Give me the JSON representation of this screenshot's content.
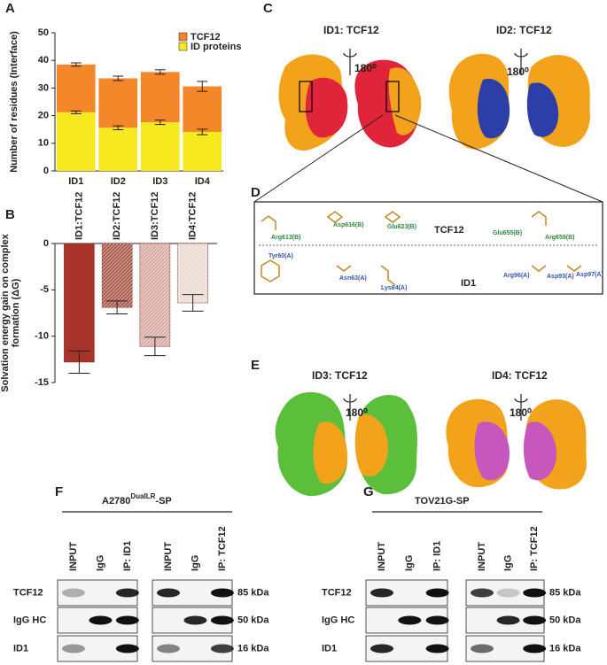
{
  "chart_data": [
    {
      "type": "stacked-bar",
      "ylabel": "Number of residues (Interface)",
      "categories": [
        "ID1",
        "ID2",
        "ID3",
        "ID4"
      ],
      "series": [
        {
          "name": "ID proteins",
          "color": "#f6ea1e",
          "values": [
            21.2,
            15.6,
            17.6,
            14.1
          ],
          "errors": [
            0.5,
            0.7,
            0.8,
            1.0
          ]
        },
        {
          "name": "TCF12",
          "color": "#f4872a",
          "values": [
            17.3,
            17.9,
            18.2,
            16.5
          ],
          "errors": [
            0.6,
            0.8,
            0.8,
            1.8
          ]
        }
      ],
      "ylim": [
        0,
        50
      ],
      "yticks": [
        0,
        10,
        20,
        30,
        40,
        50
      ],
      "legend": "upper right"
    },
    {
      "type": "bar",
      "ylabel": "Solvation energy gain on complex formation (ΔG)",
      "categories": [
        "ID1:TCF12",
        "ID2:TCF12",
        "ID3:TCF12",
        "ID4:TCF12"
      ],
      "values": [
        -12.8,
        -6.9,
        -11.1,
        -6.4
      ],
      "errors": [
        1.2,
        0.7,
        1.0,
        0.9
      ],
      "colors": [
        "#a8332a",
        "#a9584a",
        "#d9aaa4",
        "#eadad2"
      ],
      "hatched": [
        false,
        true,
        true,
        true
      ],
      "ylim": [
        -15,
        0
      ],
      "yticks": [
        0,
        -5,
        -10,
        -15
      ]
    }
  ],
  "panels": {
    "a": "A",
    "b": "B",
    "c": "C",
    "d": "D",
    "e": "E",
    "f": "F",
    "g": "G"
  },
  "structures": {
    "id1": "ID1: TCF12",
    "id2": "ID2: TCF12",
    "id3": "ID3: TCF12",
    "id4": "ID4: TCF12",
    "rotation": "180⁰"
  },
  "interface": {
    "top": "TCF12",
    "bottom": "ID1",
    "residues": [
      "Arg613(B)",
      "Asp616(B)",
      "Glu623(B)",
      "Glu655(B)",
      "Arg659(B)",
      "Tyr60(A)",
      "Asn63(A)",
      "Lys84(A)",
      "Arg96(A)",
      "Asp93(A)",
      "Asp97(A)"
    ]
  },
  "blots": {
    "f": {
      "title": "A2780",
      "superscript": "DualLR",
      "suffix": "-SP"
    },
    "g": {
      "title": "TOV21G-SP"
    },
    "lanes": [
      "INPUT",
      "IgG",
      "IP: ID1",
      "INPUT",
      "IgG",
      "IP: TCF12"
    ],
    "rows": [
      "TCF12",
      "IgG HC",
      "ID1"
    ],
    "sizes": [
      "85 kDa",
      "50 kDa",
      "16 kDa"
    ]
  }
}
